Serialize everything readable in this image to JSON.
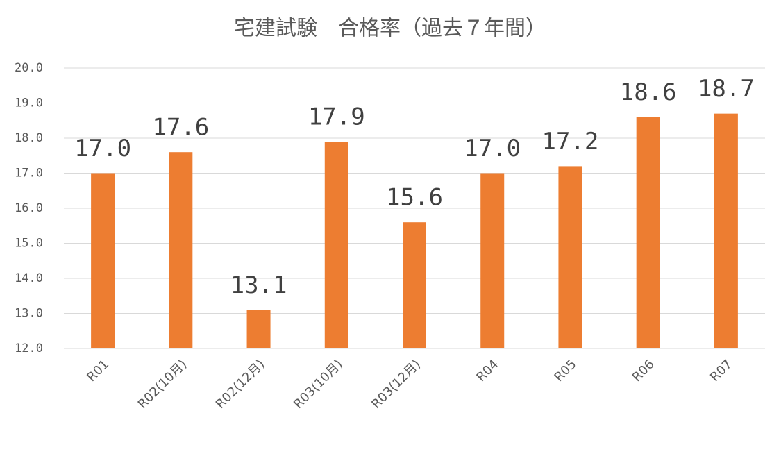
{
  "chart_data": {
    "type": "bar",
    "title": "宅建試験　合格率（過去７年間）",
    "categories": [
      "R01",
      "R02(10月)",
      "R02(12月)",
      "R03(10月)",
      "R03(12月)",
      "R04",
      "R05",
      "R06",
      "R07"
    ],
    "values": [
      17.0,
      17.6,
      13.1,
      17.9,
      15.6,
      17.0,
      17.2,
      18.6,
      18.7
    ],
    "value_labels": [
      "17.0",
      "17.6",
      "13.1",
      "17.9",
      "15.6",
      "17.0",
      "17.2",
      "18.6",
      "18.7"
    ],
    "color": "#ed7d31",
    "ylim": [
      12,
      20
    ],
    "yticks": [
      {
        "value": 12,
        "label": "12.0"
      },
      {
        "value": 13,
        "label": "13.0"
      },
      {
        "value": 14,
        "label": "14.0"
      },
      {
        "value": 15,
        "label": "15.0"
      },
      {
        "value": 16,
        "label": "16.0"
      },
      {
        "value": 17,
        "label": "17.0"
      },
      {
        "value": 18,
        "label": "18.0"
      },
      {
        "value": 19,
        "label": "19.0"
      },
      {
        "value": 20,
        "label": "20.0"
      }
    ],
    "grid": true
  }
}
